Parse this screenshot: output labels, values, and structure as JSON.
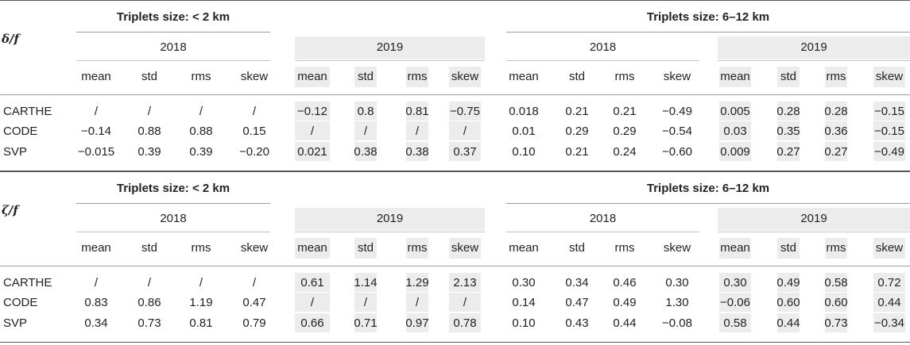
{
  "columns": [
    "mean",
    "std",
    "rms",
    "skew"
  ],
  "sections": [
    {
      "variable": "δ/f",
      "groups": [
        {
          "title": "Triplets size: < 2 km",
          "years": [
            "2018",
            "2019"
          ]
        },
        {
          "title": "Triplets size: 6–12 km",
          "years": [
            "2018",
            "2019"
          ]
        }
      ],
      "rows": [
        {
          "label": "CARTHE",
          "values": [
            "/",
            "/",
            "/",
            "/",
            "−0.12",
            "0.8",
            "0.81",
            "−0.75",
            "0.018",
            "0.21",
            "0.21",
            "−0.49",
            "0.005",
            "0.28",
            "0.28",
            "−0.15"
          ]
        },
        {
          "label": "CODE",
          "values": [
            "−0.14",
            "0.88",
            "0.88",
            "0.15",
            "/",
            "/",
            "/",
            "/",
            "0.01",
            "0.29",
            "0.29",
            "−0.54",
            "0.03",
            "0.35",
            "0.36",
            "−0.15"
          ]
        },
        {
          "label": "SVP",
          "values": [
            "−0.015",
            "0.39",
            "0.39",
            "−0.20",
            "0.021",
            "0.38",
            "0.38",
            "0.37",
            "0.10",
            "0.21",
            "0.24",
            "−0.60",
            "0.009",
            "0.27",
            "0.27",
            "−0.49"
          ]
        }
      ]
    },
    {
      "variable": "ζ/f",
      "groups": [
        {
          "title": "Triplets size: < 2 km",
          "years": [
            "2018",
            "2019"
          ]
        },
        {
          "title": "Triplets size: 6–12 km",
          "years": [
            "2018",
            "2019"
          ]
        }
      ],
      "rows": [
        {
          "label": "CARTHE",
          "values": [
            "/",
            "/",
            "/",
            "/",
            "0.61",
            "1.14",
            "1.29",
            "2.13",
            "0.30",
            "0.34",
            "0.46",
            "0.30",
            "0.30",
            "0.49",
            "0.58",
            "0.72"
          ]
        },
        {
          "label": "CODE",
          "values": [
            "0.83",
            "0.86",
            "1.19",
            "0.47",
            "/",
            "/",
            "/",
            "/",
            "0.14",
            "0.47",
            "0.49",
            "1.30",
            "−0.06",
            "0.60",
            "0.60",
            "0.44"
          ]
        },
        {
          "label": "SVP",
          "values": [
            "0.34",
            "0.73",
            "0.81",
            "0.79",
            "0.66",
            "0.71",
            "0.97",
            "0.78",
            "0.10",
            "0.43",
            "0.44",
            "−0.08",
            "0.58",
            "0.44",
            "0.73",
            "−0.34"
          ]
        }
      ]
    }
  ]
}
